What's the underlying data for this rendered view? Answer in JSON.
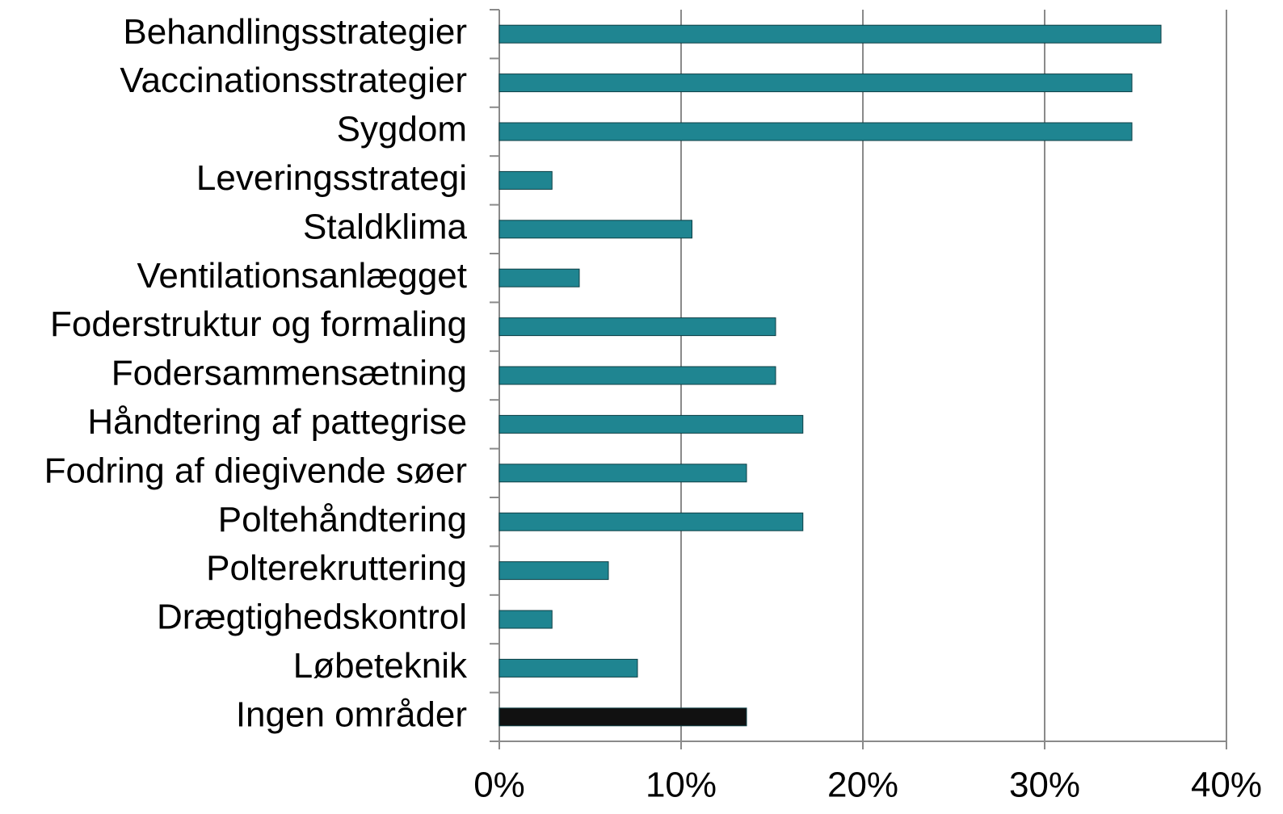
{
  "chart_data": {
    "type": "bar",
    "orientation": "horizontal",
    "categories": [
      "Behandlingsstrategier",
      "Vaccinationsstrategier",
      "Sygdom",
      "Leveringsstrategi",
      "Staldklima",
      "Ventilationsanlægget",
      "Foderstruktur og formaling",
      "Fodersammensætning",
      "Håndtering af pattegrise",
      "Fodring af diegivende søer",
      "Poltehåndtering",
      "Polterekruttering",
      "Drægtighedskontrol",
      "Løbeteknik",
      "Ingen områder"
    ],
    "values": [
      36.4,
      34.8,
      34.8,
      2.9,
      10.6,
      4.4,
      15.2,
      15.2,
      16.7,
      13.6,
      16.7,
      6.0,
      2.9,
      7.6,
      13.6
    ],
    "colors": [
      "#1f8591",
      "#1f8591",
      "#1f8591",
      "#1f8591",
      "#1f8591",
      "#1f8591",
      "#1f8591",
      "#1f8591",
      "#1f8591",
      "#1f8591",
      "#1f8591",
      "#1f8591",
      "#1f8591",
      "#1f8591",
      "#111111"
    ],
    "xlim": [
      0,
      40
    ],
    "xticks": [
      {
        "value": 0,
        "label": "0%"
      },
      {
        "value": 10,
        "label": "10%"
      },
      {
        "value": 20,
        "label": "20%"
      },
      {
        "value": 30,
        "label": "30%"
      },
      {
        "value": 40,
        "label": "40%"
      }
    ],
    "grid": true
  }
}
